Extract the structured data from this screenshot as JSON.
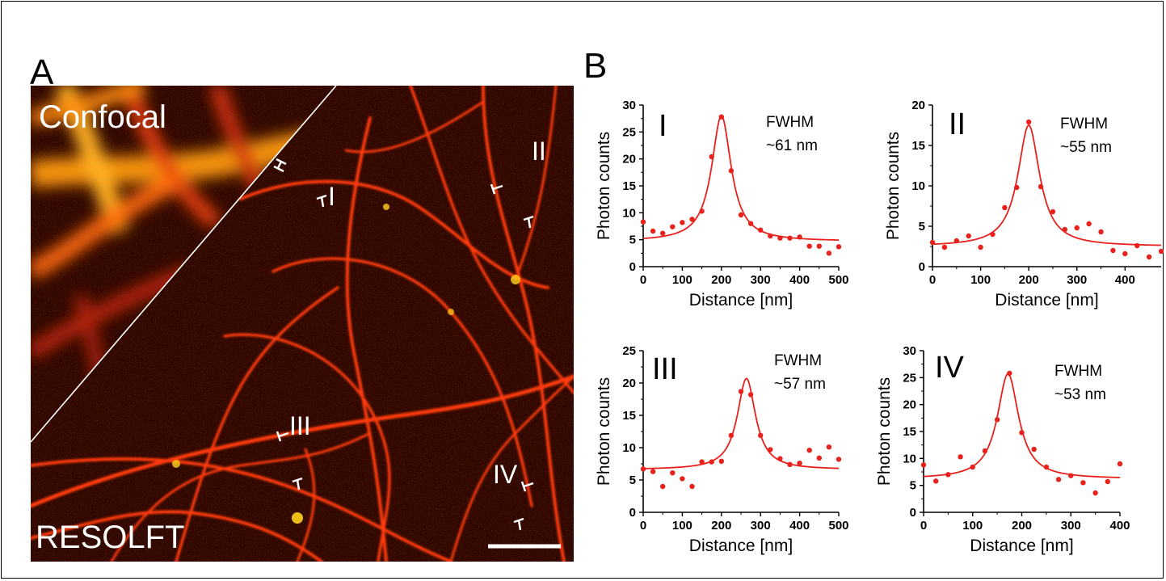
{
  "figure": {
    "panel_a_label": "A",
    "panel_b_label": "B",
    "micrograph": {
      "region_labels": [
        "Confocal",
        "RESOLFT"
      ],
      "profile_labels": [
        "I",
        "II",
        "III",
        "IV"
      ],
      "colors": {
        "background": "#2a0300",
        "filament": "#ff3a0a",
        "hot": "#ffd21a",
        "label": "#ffffff"
      }
    }
  },
  "chart_data": [
    {
      "type": "scatter",
      "panel": "I",
      "annotation": [
        "FWHM",
        "~61 nm"
      ],
      "xlabel": "Distance [nm]",
      "ylabel": "Photon counts",
      "xlim": [
        0,
        500
      ],
      "ylim": [
        0,
        30
      ],
      "xticks": [
        0,
        100,
        200,
        300,
        400,
        500
      ],
      "yticks": [
        0,
        5,
        10,
        15,
        20,
        25,
        30
      ],
      "points": [
        [
          0,
          8.3
        ],
        [
          25,
          6.6
        ],
        [
          50,
          6.2
        ],
        [
          75,
          7.4
        ],
        [
          100,
          8.2
        ],
        [
          125,
          8.8
        ],
        [
          150,
          10.3
        ],
        [
          175,
          20.4
        ],
        [
          200,
          27.8
        ],
        [
          225,
          17.8
        ],
        [
          250,
          9.6
        ],
        [
          275,
          8.0
        ],
        [
          300,
          6.8
        ],
        [
          325,
          5.7
        ],
        [
          350,
          5.3
        ],
        [
          375,
          5.3
        ],
        [
          400,
          5.5
        ],
        [
          425,
          3.8
        ],
        [
          450,
          3.8
        ],
        [
          475,
          2.5
        ],
        [
          500,
          3.7
        ]
      ],
      "fit": {
        "model": "lorentzian",
        "center": 200,
        "fwhm": 61,
        "amplitude": 23.3,
        "baseline": 4.7
      },
      "color": "#e8211c"
    },
    {
      "type": "scatter",
      "panel": "II",
      "annotation": [
        "FWHM",
        "~55 nm"
      ],
      "xlabel": "Distance [nm]",
      "ylabel": "Photon counts",
      "xlim": [
        0,
        475
      ],
      "ylim": [
        0,
        20
      ],
      "xticks": [
        0,
        100,
        200,
        300,
        400
      ],
      "yticks": [
        0,
        5,
        10,
        15,
        20
      ],
      "points": [
        [
          0,
          3.0
        ],
        [
          25,
          2.4
        ],
        [
          50,
          3.2
        ],
        [
          75,
          3.8
        ],
        [
          100,
          2.4
        ],
        [
          125,
          4.0
        ],
        [
          150,
          7.3
        ],
        [
          175,
          9.8
        ],
        [
          200,
          17.9
        ],
        [
          225,
          9.9
        ],
        [
          250,
          6.8
        ],
        [
          275,
          4.6
        ],
        [
          300,
          4.8
        ],
        [
          325,
          5.3
        ],
        [
          350,
          4.3
        ],
        [
          375,
          2.0
        ],
        [
          400,
          1.6
        ],
        [
          425,
          2.6
        ],
        [
          450,
          1.2
        ],
        [
          475,
          1.9
        ]
      ],
      "fit": {
        "model": "lorentzian",
        "center": 200,
        "fwhm": 55,
        "amplitude": 15.0,
        "baseline": 2.5
      },
      "color": "#e8211c"
    },
    {
      "type": "scatter",
      "panel": "III",
      "annotation": [
        "FWHM",
        "~57 nm"
      ],
      "xlabel": "Distance [nm]",
      "ylabel": "Photon counts",
      "xlim": [
        0,
        500
      ],
      "ylim": [
        0,
        25
      ],
      "xticks": [
        0,
        100,
        200,
        300,
        400,
        500
      ],
      "yticks": [
        0,
        5,
        10,
        15,
        20,
        25
      ],
      "points": [
        [
          0,
          6.7
        ],
        [
          25,
          6.3
        ],
        [
          50,
          4.0
        ],
        [
          75,
          6.1
        ],
        [
          100,
          5.2
        ],
        [
          125,
          4.0
        ],
        [
          150,
          7.8
        ],
        [
          175,
          7.8
        ],
        [
          200,
          7.9
        ],
        [
          225,
          11.9
        ],
        [
          250,
          18.7
        ],
        [
          275,
          18.2
        ],
        [
          300,
          11.9
        ],
        [
          325,
          9.7
        ],
        [
          350,
          8.3
        ],
        [
          375,
          7.4
        ],
        [
          400,
          7.6
        ],
        [
          425,
          9.6
        ],
        [
          450,
          8.4
        ],
        [
          475,
          10.1
        ],
        [
          500,
          8.2
        ]
      ],
      "fit": {
        "model": "lorentzian",
        "center": 264,
        "fwhm": 57,
        "amplitude": 14.1,
        "baseline": 6.6
      },
      "color": "#e8211c"
    },
    {
      "type": "scatter",
      "panel": "IV",
      "annotation": [
        "FWHM",
        "~53 nm"
      ],
      "xlabel": "Distance [nm]",
      "ylabel": "Photon counts",
      "xlim": [
        0,
        400
      ],
      "ylim": [
        0,
        30
      ],
      "xticks": [
        0,
        100,
        200,
        300,
        400
      ],
      "yticks": [
        0,
        5,
        10,
        15,
        20,
        25,
        30
      ],
      "points": [
        [
          0,
          8.8
        ],
        [
          25,
          5.8
        ],
        [
          50,
          7.0
        ],
        [
          75,
          10.3
        ],
        [
          100,
          8.4
        ],
        [
          125,
          11.4
        ],
        [
          150,
          17.2
        ],
        [
          175,
          25.8
        ],
        [
          200,
          14.8
        ],
        [
          225,
          11.7
        ],
        [
          250,
          8.4
        ],
        [
          275,
          6.1
        ],
        [
          300,
          6.8
        ],
        [
          325,
          5.5
        ],
        [
          350,
          3.6
        ],
        [
          375,
          5.7
        ],
        [
          400,
          9.0
        ]
      ],
      "fit": {
        "model": "lorentzian",
        "center": 172,
        "fwhm": 53,
        "amplitude": 19.5,
        "baseline": 6.2
      },
      "color": "#e8211c"
    }
  ]
}
